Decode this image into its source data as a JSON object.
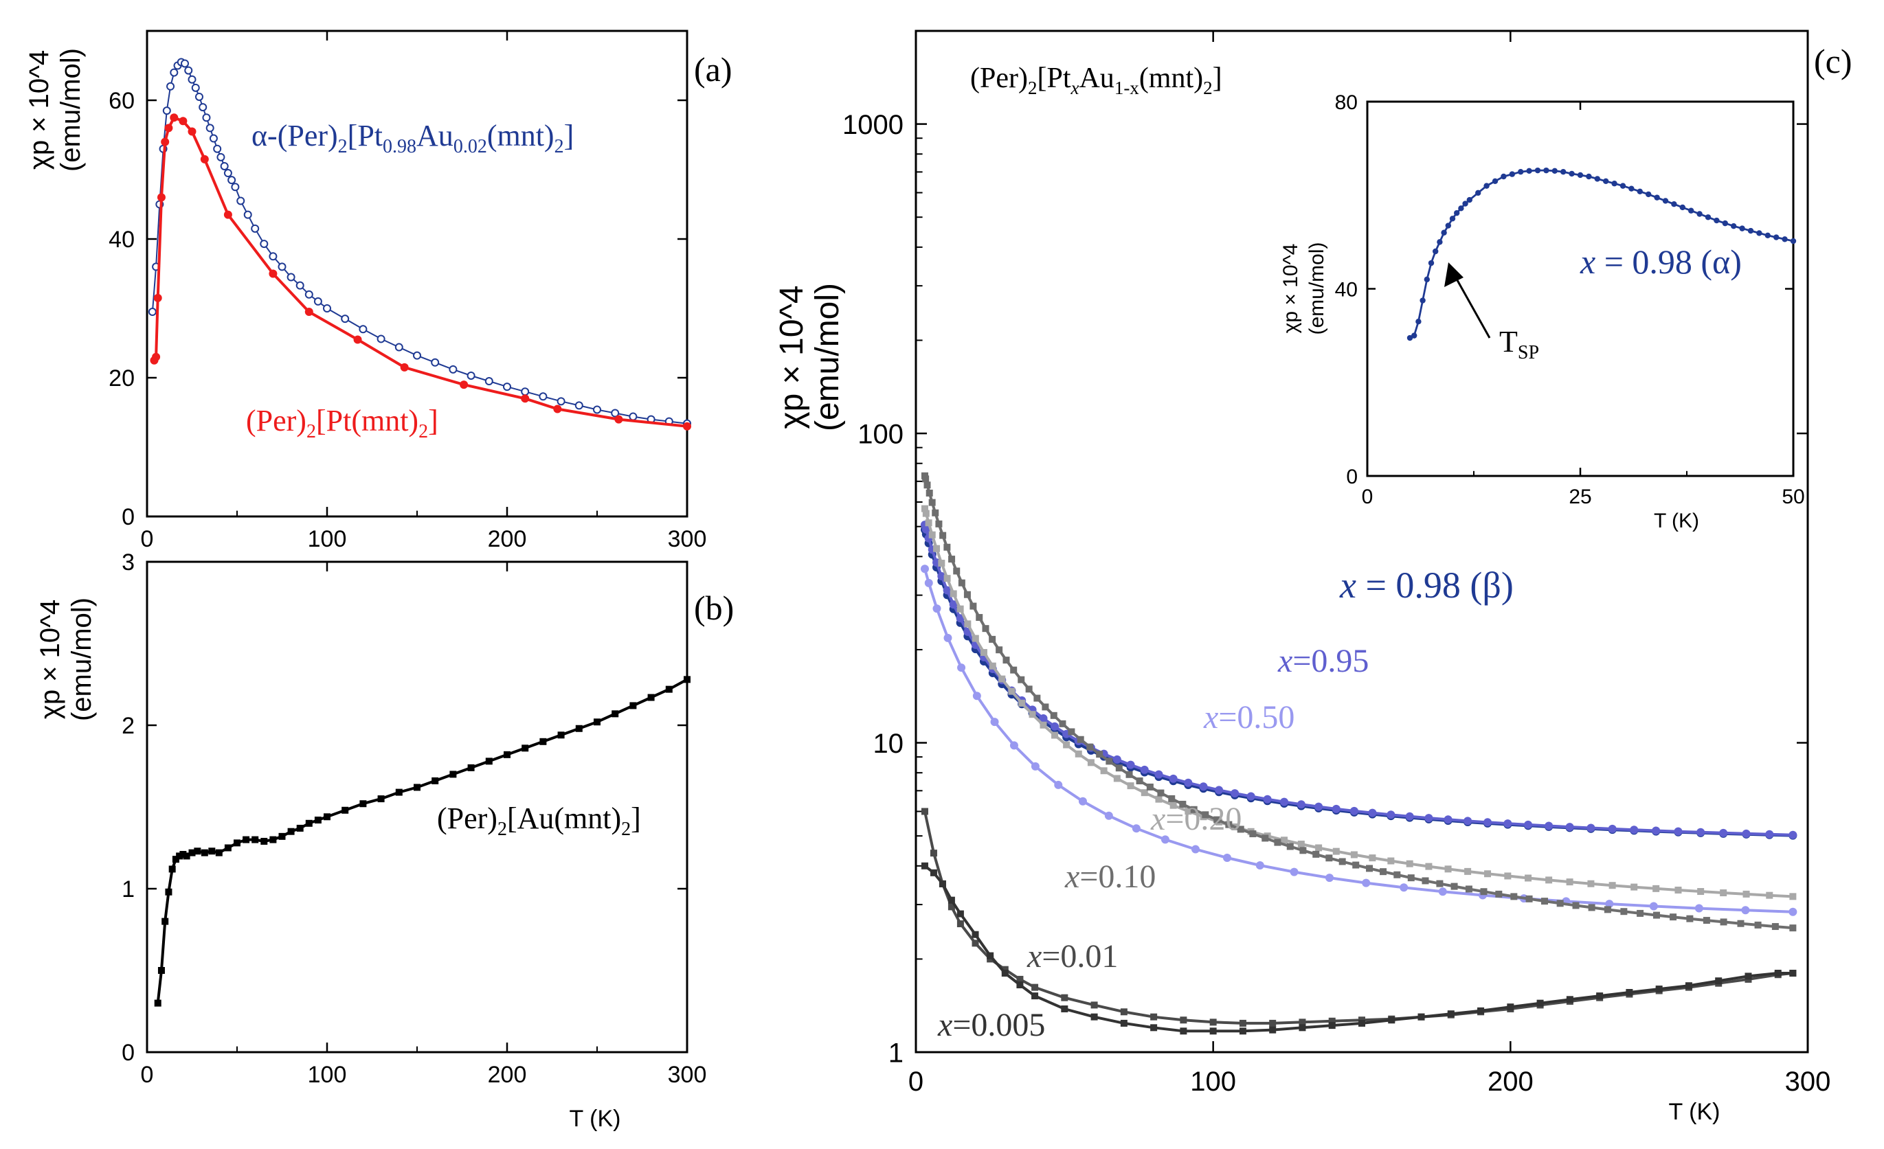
{
  "chart_data": [
    {
      "id": "a",
      "panel_label": "(a)",
      "type": "line",
      "y_scale": "linear",
      "xlim": [
        0,
        300
      ],
      "ylim": [
        0,
        70
      ],
      "x_ticks": [
        "0",
        "100",
        "200",
        "300"
      ],
      "y_ticks": [
        "0",
        "20",
        "40",
        "60"
      ],
      "x_tick_values": [
        0,
        100,
        200,
        300
      ],
      "y_tick_values": [
        0,
        20,
        40,
        60
      ],
      "ylabel_line1": "χp × 10^4",
      "ylabel_line2": "(emu/mol)",
      "series": [
        {
          "name": "α-(Per)2[Pt0.98Au0.02(mnt)2]",
          "color": "#1f3a93",
          "marker": "open-circle",
          "x": [
            3,
            5,
            7,
            9,
            11,
            13,
            15,
            17,
            19,
            21,
            23,
            25,
            27,
            29,
            31,
            33,
            35,
            37,
            39,
            41,
            43,
            45,
            47,
            49,
            52,
            56,
            60,
            65,
            70,
            75,
            80,
            85,
            90,
            95,
            100,
            110,
            120,
            130,
            140,
            150,
            160,
            170,
            180,
            190,
            200,
            210,
            220,
            230,
            240,
            250,
            260,
            270,
            280,
            290,
            300
          ],
          "y": [
            29.5,
            36,
            45,
            53,
            58.5,
            62,
            64,
            65,
            65.5,
            65.3,
            64.3,
            63,
            61.8,
            60.5,
            59,
            57.5,
            56,
            54.5,
            53,
            51.8,
            50.5,
            49.5,
            48.5,
            47.5,
            45.5,
            43.5,
            41.5,
            39.3,
            37.5,
            36,
            34.5,
            33.3,
            32,
            31,
            30,
            28.5,
            27,
            25.6,
            24.4,
            23.2,
            22.2,
            21.2,
            20.3,
            19.5,
            18.7,
            18,
            17.3,
            16.6,
            16,
            15.4,
            14.9,
            14.4,
            14,
            13.7,
            13.4
          ]
        },
        {
          "name": "(Per)2[Pt(mnt)2]",
          "color": "#ee1c1c",
          "marker": "filled-circle",
          "x": [
            4,
            5,
            6,
            8,
            10,
            12,
            15,
            20,
            25,
            32,
            45,
            70,
            90,
            117,
            143,
            176,
            210,
            228,
            262,
            300
          ],
          "y": [
            22.5,
            23,
            31.5,
            46,
            54,
            56,
            57.5,
            57,
            55.5,
            51.5,
            43.5,
            35,
            29.5,
            25.5,
            21.5,
            19,
            17,
            15.5,
            14,
            13
          ]
        }
      ],
      "annotations": {
        "alpha_label": {
          "pre": "α-(Per)",
          "s1": "2",
          "mid1": "[Pt",
          "s2": "0.98",
          "mid2": "Au",
          "s3": "0.02",
          "mid3": "(mnt)",
          "s4": "2",
          "end": "]"
        },
        "pt_label": {
          "pre": "(Per)",
          "s1": "2",
          "mid": "[Pt(mnt)",
          "s2": "2",
          "end": "]"
        }
      }
    },
    {
      "id": "b",
      "panel_label": "(b)",
      "type": "line",
      "y_scale": "linear",
      "xlim": [
        0,
        300
      ],
      "ylim": [
        0,
        3
      ],
      "x_ticks": [
        "0",
        "100",
        "200",
        "300"
      ],
      "y_ticks": [
        "0",
        "1",
        "2",
        "3"
      ],
      "x_tick_values": [
        0,
        100,
        200,
        300
      ],
      "y_tick_values": [
        0,
        1,
        2,
        3
      ],
      "xlabel": "T (K)",
      "ylabel_line1": "χp × 10^4",
      "ylabel_line2": "(emu/mol)",
      "series": [
        {
          "name": "(Per)2[Au(mnt)2]",
          "color": "#000000",
          "marker": "filled-square",
          "x": [
            6,
            8,
            10,
            12,
            14,
            16,
            18,
            20,
            22,
            25,
            28,
            32,
            36,
            40,
            45,
            50,
            55,
            60,
            65,
            70,
            75,
            80,
            85,
            90,
            95,
            100,
            110,
            120,
            130,
            140,
            150,
            160,
            170,
            180,
            190,
            200,
            210,
            220,
            230,
            240,
            250,
            260,
            270,
            280,
            290,
            300
          ],
          "y": [
            0.3,
            0.5,
            0.8,
            0.98,
            1.12,
            1.18,
            1.2,
            1.21,
            1.2,
            1.22,
            1.23,
            1.22,
            1.23,
            1.22,
            1.25,
            1.28,
            1.3,
            1.3,
            1.29,
            1.3,
            1.32,
            1.35,
            1.37,
            1.4,
            1.42,
            1.44,
            1.48,
            1.52,
            1.55,
            1.59,
            1.62,
            1.66,
            1.7,
            1.74,
            1.78,
            1.82,
            1.86,
            1.9,
            1.94,
            1.98,
            2.02,
            2.07,
            2.12,
            2.17,
            2.22,
            2.28
          ]
        }
      ],
      "annotations": {
        "au_label": {
          "pre": "(Per)",
          "s1": "2",
          "mid": "[Au(mnt)",
          "s2": "2",
          "end": "]"
        }
      }
    },
    {
      "id": "c",
      "panel_label": "(c)",
      "type": "line",
      "y_scale": "log",
      "xlim": [
        0,
        300
      ],
      "ylim": [
        1,
        2000
      ],
      "x_ticks": [
        "0",
        "100",
        "200",
        "300"
      ],
      "y_ticks": [
        "1",
        "10",
        "100",
        "1000"
      ],
      "x_tick_values": [
        0,
        100,
        200,
        300
      ],
      "y_tick_values": [
        1,
        10,
        100,
        1000
      ],
      "xlabel": "T (K)",
      "ylabel_line1": "χp × 10^4",
      "ylabel_line2": "(emu/mol)",
      "title": "(Per)2[PtxAu1-x(mnt)2]",
      "title_parts": {
        "pre": "(Per)",
        "s1": "2",
        "mid1": "[Pt",
        "s2": "x",
        "mid2": "Au",
        "s3": "1-x",
        "mid3": "(mnt)",
        "s4": "2",
        "end": "]"
      },
      "series": [
        {
          "name": "x = 0.98 (β)",
          "label_var": "x",
          "label_rest": " = 0.98 (β)",
          "color": "#1f3a93",
          "marker": "filled-circle",
          "model": [
            4.44,
            31.1
          ],
          "x_range": [
            3,
            295
          ],
          "n": 60
        },
        {
          "name": "x=0.95",
          "label_var": "x",
          "label_rest": "=0.95",
          "color": "#5f5fcf",
          "marker": "filled-circle",
          "model": [
            4.44,
            32.4
          ],
          "x_range": [
            3,
            295
          ],
          "n": 60
        },
        {
          "name": "x=0.50",
          "label_var": "x",
          "label_rest": "=0.50",
          "color": "#9999f0",
          "marker": "filled-circle",
          "model": [
            2.4,
            23.9
          ],
          "x_range": [
            3,
            295
          ],
          "n": 30
        },
        {
          "name": "x=0.20",
          "label_var": "x",
          "label_rest": "=0.20",
          "color": "#a8a8a8",
          "marker": "filled-square",
          "model": [
            2.48,
            38.3
          ],
          "x_range": [
            3,
            295
          ],
          "n": 60
        },
        {
          "name": "x=0.10",
          "label_var": "x",
          "label_rest": "=0.10",
          "color": "#6e6e6e",
          "marker": "filled-square",
          "model": [
            1.6,
            50
          ],
          "x_range": [
            3,
            295
          ],
          "n": 80
        },
        {
          "name": "x=0.01",
          "label_var": "x",
          "label_rest": "=0.01",
          "color": "#4a4a4a",
          "marker": "filled-square",
          "x": [
            3,
            6,
            9,
            12,
            15,
            20,
            25,
            30,
            35,
            40,
            50,
            60,
            70,
            80,
            90,
            100,
            110,
            120,
            130,
            140,
            150,
            160,
            170,
            180,
            190,
            200,
            210,
            220,
            230,
            240,
            250,
            260,
            270,
            280,
            290,
            295
          ],
          "y": [
            6,
            4.4,
            3.5,
            2.95,
            2.6,
            2.25,
            2,
            1.85,
            1.72,
            1.62,
            1.5,
            1.42,
            1.35,
            1.3,
            1.27,
            1.25,
            1.24,
            1.24,
            1.25,
            1.26,
            1.27,
            1.28,
            1.3,
            1.32,
            1.35,
            1.38,
            1.42,
            1.46,
            1.5,
            1.54,
            1.58,
            1.62,
            1.67,
            1.72,
            1.78,
            1.8
          ]
        },
        {
          "name": "x=0.005",
          "label_var": "x",
          "label_rest": "=0.005",
          "color": "#333333",
          "marker": "filled-square",
          "x": [
            3,
            6,
            9,
            12,
            15,
            20,
            25,
            30,
            35,
            40,
            50,
            60,
            70,
            80,
            90,
            100,
            110,
            120,
            130,
            140,
            150,
            160,
            170,
            180,
            190,
            200,
            210,
            220,
            230,
            240,
            250,
            260,
            270,
            280,
            290,
            295
          ],
          "y": [
            4,
            3.8,
            3.5,
            3.1,
            2.8,
            2.4,
            2.05,
            1.8,
            1.65,
            1.52,
            1.38,
            1.3,
            1.24,
            1.2,
            1.17,
            1.17,
            1.17,
            1.18,
            1.2,
            1.22,
            1.24,
            1.27,
            1.3,
            1.33,
            1.36,
            1.4,
            1.44,
            1.48,
            1.52,
            1.56,
            1.6,
            1.64,
            1.7,
            1.76,
            1.8,
            1.8
          ]
        }
      ]
    },
    {
      "id": "c-inset",
      "type": "line",
      "y_scale": "linear",
      "xlim": [
        0,
        50
      ],
      "ylim": [
        0,
        80
      ],
      "x_ticks": [
        "0",
        "25",
        "50"
      ],
      "y_ticks": [
        "0",
        "40",
        "80"
      ],
      "x_tick_values": [
        0,
        25,
        50
      ],
      "y_tick_values": [
        0,
        40,
        80
      ],
      "xlabel": "T (K)",
      "ylabel_line1": "χp × 10^4",
      "ylabel_line2": "(emu/mol)",
      "series": [
        {
          "name": "x = 0.98 (α)",
          "label_var": "x",
          "label_rest": " = 0.98 (α)",
          "color": "#1f3a93",
          "marker": "filled-circle",
          "x": [
            5,
            5.5,
            6,
            6.5,
            7,
            7.5,
            8,
            8.5,
            9,
            9.5,
            10,
            10.5,
            11,
            11.5,
            12,
            13,
            14,
            15,
            16,
            17,
            18,
            19,
            20,
            21,
            22,
            23,
            24,
            25,
            26,
            27,
            28,
            29,
            30,
            31,
            32,
            33,
            34,
            35,
            36,
            37,
            38,
            39,
            40,
            41,
            42,
            43,
            44,
            45,
            46,
            47,
            48,
            49,
            50
          ],
          "y": [
            29.5,
            30,
            33,
            37.5,
            42,
            45.5,
            48,
            50,
            52,
            53.5,
            55,
            56.2,
            57.2,
            58.2,
            59,
            60.5,
            62,
            63,
            64,
            64.5,
            65,
            65.2,
            65.3,
            65.3,
            65.2,
            65,
            64.6,
            64.3,
            64,
            63.5,
            63,
            62.5,
            62,
            61.4,
            60.8,
            60.2,
            59.5,
            58.8,
            58.1,
            57.4,
            56.7,
            56,
            55.3,
            54.6,
            54,
            53.4,
            52.9,
            52.4,
            51.9,
            51.4,
            51,
            50.6,
            50.2
          ]
        }
      ],
      "annotation": {
        "arrow_label": "T",
        "arrow_sub": "SP",
        "arrow_target_x": 8.5
      }
    }
  ]
}
